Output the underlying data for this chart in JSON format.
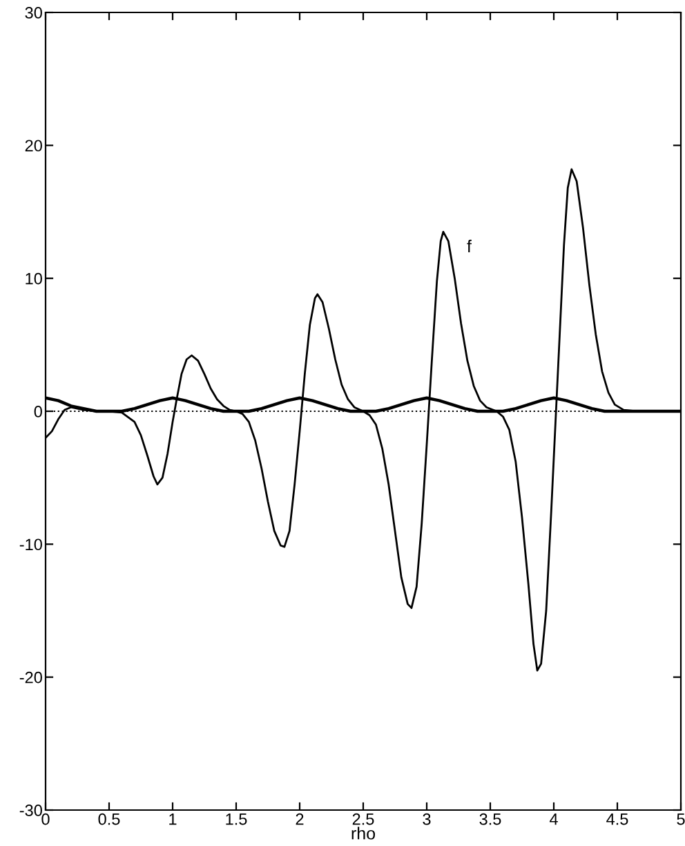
{
  "chart_data": {
    "type": "line",
    "xlabel": "rho",
    "xlim": [
      0,
      5
    ],
    "ylim": [
      -30,
      30
    ],
    "xticks": [
      0,
      0.5,
      1,
      1.5,
      2,
      2.5,
      3,
      3.5,
      4,
      4.5,
      5
    ],
    "yticks": [
      -30,
      -20,
      -10,
      0,
      10,
      20,
      30
    ],
    "grid": false,
    "legend": false,
    "marker": "none",
    "line_style": "solid",
    "ref_lines": [
      {
        "axis": "y",
        "value": 0,
        "label": null,
        "color": "#000000",
        "line_style": "dotted"
      }
    ],
    "series": [
      {
        "name": "f",
        "color": "#000000",
        "x": [
          0,
          0.05,
          0.1,
          0.15,
          0.2,
          0.3,
          0.4,
          0.5,
          0.6,
          0.7,
          0.75,
          0.8,
          0.85,
          0.88,
          0.92,
          0.96,
          1.0,
          1.03,
          1.07,
          1.11,
          1.15,
          1.2,
          1.25,
          1.3,
          1.35,
          1.4,
          1.45,
          1.5,
          1.55,
          1.6,
          1.65,
          1.7,
          1.75,
          1.8,
          1.85,
          1.88,
          1.92,
          1.96,
          2.0,
          2.04,
          2.08,
          2.12,
          2.14,
          2.18,
          2.23,
          2.28,
          2.33,
          2.38,
          2.43,
          2.5,
          2.55,
          2.6,
          2.65,
          2.7,
          2.75,
          2.8,
          2.85,
          2.88,
          2.92,
          2.96,
          3.0,
          3.04,
          3.08,
          3.11,
          3.13,
          3.17,
          3.22,
          3.27,
          3.32,
          3.37,
          3.42,
          3.47,
          3.55,
          3.6,
          3.65,
          3.7,
          3.75,
          3.8,
          3.84,
          3.87,
          3.9,
          3.94,
          3.98,
          4.0,
          4.04,
          4.08,
          4.11,
          4.14,
          4.18,
          4.23,
          4.28,
          4.33,
          4.38,
          4.43,
          4.48,
          4.55,
          4.65,
          5
        ],
        "values": [
          -2,
          -1.5,
          -0.6,
          0.1,
          0.3,
          0.1,
          0,
          0,
          -0.1,
          -0.8,
          -1.8,
          -3.3,
          -4.9,
          -5.5,
          -5.0,
          -3.2,
          -0.8,
          0.8,
          2.8,
          3.9,
          4.2,
          3.8,
          2.8,
          1.7,
          0.9,
          0.4,
          0.1,
          0,
          -0.2,
          -0.8,
          -2.2,
          -4.3,
          -6.8,
          -9.0,
          -10.1,
          -10.2,
          -9.0,
          -5.5,
          -1.5,
          2.8,
          6.5,
          8.5,
          8.8,
          8.2,
          6.2,
          3.9,
          2.0,
          0.9,
          0.3,
          0,
          -0.3,
          -1.0,
          -2.8,
          -5.5,
          -9.0,
          -12.5,
          -14.5,
          -14.8,
          -13.2,
          -8.5,
          -2.5,
          3.8,
          9.8,
          12.8,
          13.5,
          12.8,
          10.0,
          6.6,
          3.8,
          1.9,
          0.8,
          0.3,
          0,
          -0.4,
          -1.4,
          -3.8,
          -8.0,
          -13.0,
          -17.5,
          -19.5,
          -19.0,
          -15.0,
          -7.5,
          -3.5,
          4.5,
          12.5,
          16.8,
          18.2,
          17.3,
          13.8,
          9.5,
          5.8,
          3.0,
          1.4,
          0.5,
          0.1,
          0,
          0
        ]
      },
      {
        "color": "#000000",
        "x": [
          0,
          0.1,
          0.2,
          0.3,
          0.4,
          0.5,
          0.6,
          0.7,
          0.8,
          0.9,
          1.0,
          1.1,
          1.2,
          1.3,
          1.4,
          1.5,
          1.6,
          1.7,
          1.8,
          1.9,
          2.0,
          2.1,
          2.2,
          2.3,
          2.4,
          2.5,
          2.6,
          2.7,
          2.8,
          2.9,
          3.0,
          3.1,
          3.2,
          3.3,
          3.4,
          3.5,
          3.6,
          3.7,
          3.8,
          3.9,
          4.0,
          4.1,
          4.2,
          4.3,
          4.4,
          4.5,
          5
        ],
        "values": [
          1,
          0.8,
          0.4,
          0.2,
          0,
          0,
          0,
          0.2,
          0.5,
          0.8,
          1,
          0.8,
          0.5,
          0.2,
          0,
          0,
          0,
          0.2,
          0.5,
          0.8,
          1,
          0.8,
          0.5,
          0.2,
          0,
          0,
          0,
          0.2,
          0.5,
          0.8,
          1,
          0.8,
          0.5,
          0.2,
          0,
          0,
          0,
          0.2,
          0.5,
          0.8,
          1,
          0.8,
          0.5,
          0.2,
          0,
          0,
          0
        ]
      }
    ]
  }
}
